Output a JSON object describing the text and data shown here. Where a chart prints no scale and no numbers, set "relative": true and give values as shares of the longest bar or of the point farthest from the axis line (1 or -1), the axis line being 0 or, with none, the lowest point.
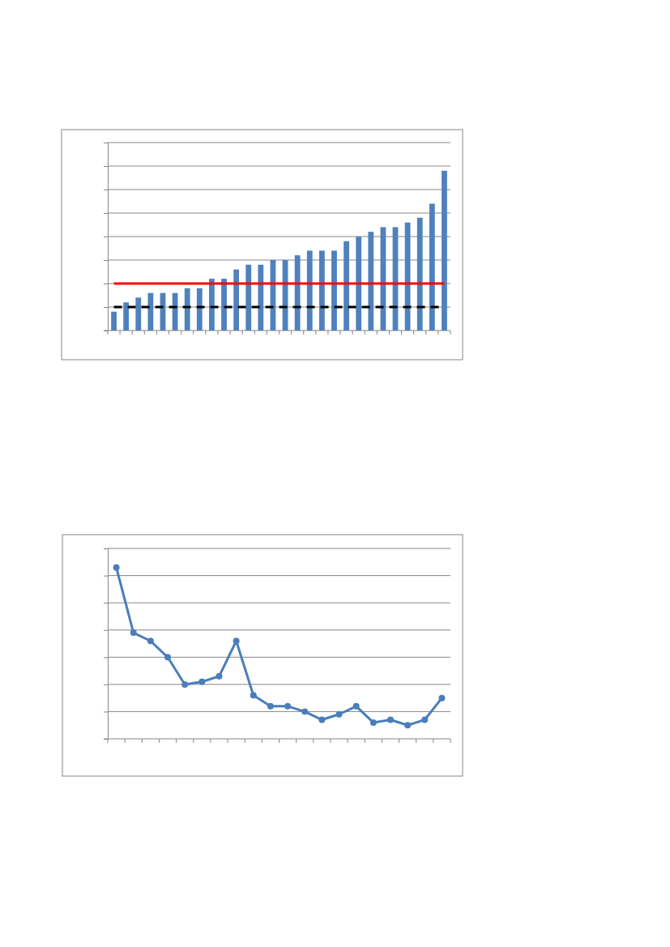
{
  "chart_data": [
    {
      "type": "bar",
      "relative": true,
      "grid": "y",
      "categories": [
        null,
        null,
        null,
        null,
        null,
        null,
        null,
        null,
        null,
        null,
        null,
        null,
        null,
        null,
        null,
        null,
        null,
        null,
        null,
        null,
        null,
        null,
        null,
        null,
        null,
        null,
        null,
        null
      ],
      "color": "#4f81bd",
      "values": [
        0.118,
        0.176,
        0.206,
        0.235,
        0.235,
        0.235,
        0.265,
        0.265,
        0.324,
        0.324,
        0.382,
        0.412,
        0.412,
        0.441,
        0.441,
        0.471,
        0.5,
        0.5,
        0.5,
        0.559,
        0.588,
        0.618,
        0.647,
        0.647,
        0.676,
        0.706,
        0.794,
        1
      ],
      "ref_lines": [
        {
          "axis": "y",
          "value": 0.294,
          "color": "#ff0000",
          "line_style": "solid"
        },
        {
          "axis": "y",
          "value": 0.147,
          "color": "#000000",
          "line_style": "dashed"
        }
      ]
    },
    {
      "type": "line",
      "relative": true,
      "grid": "y",
      "marker": "circle",
      "line_style": "solid",
      "categories": [
        null,
        null,
        null,
        null,
        null,
        null,
        null,
        null,
        null,
        null,
        null,
        null,
        null,
        null,
        null,
        null,
        null,
        null,
        null,
        null
      ],
      "color": "#4a7ebb",
      "values": [
        1,
        0.619,
        0.571,
        0.476,
        0.317,
        0.333,
        0.365,
        0.571,
        0.254,
        0.19,
        0.19,
        0.159,
        0.111,
        0.143,
        0.19,
        0.095,
        0.111,
        0.079,
        0.111,
        0.238
      ]
    }
  ]
}
